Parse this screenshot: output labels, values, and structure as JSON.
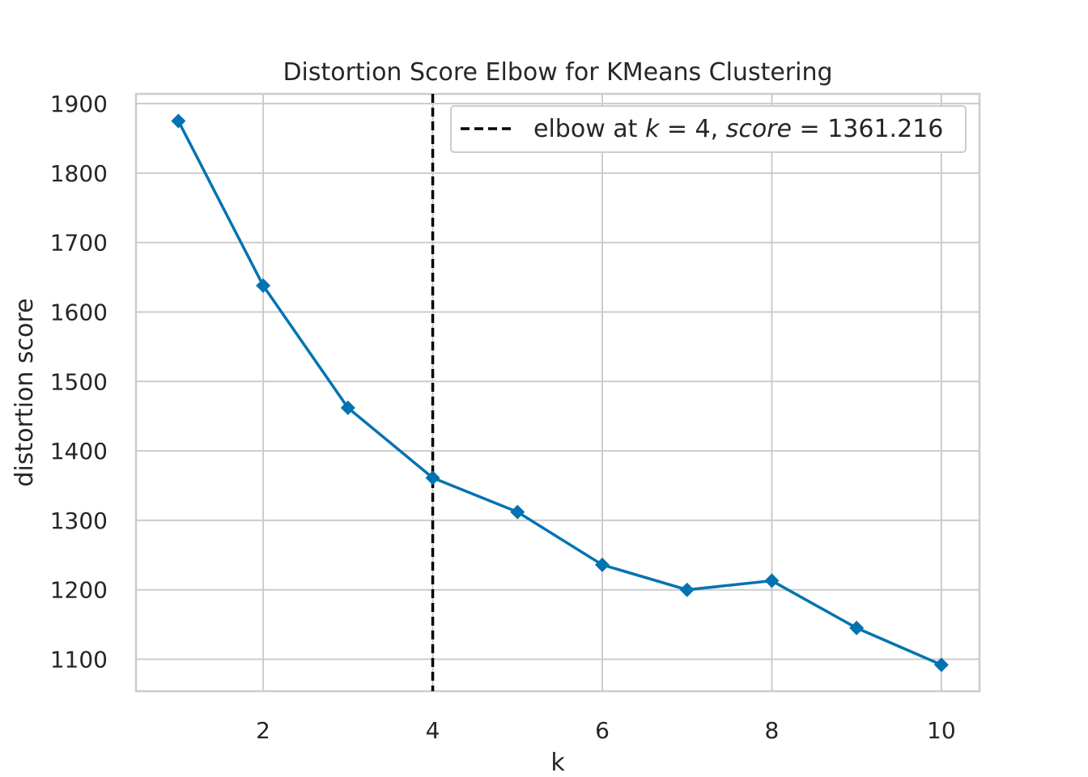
{
  "chart_data": {
    "type": "line",
    "title": "Distortion Score Elbow for KMeans Clustering",
    "xlabel": "k",
    "ylabel": "distortion score",
    "x": [
      1,
      2,
      3,
      4,
      5,
      6,
      7,
      8,
      9,
      10
    ],
    "series": [
      {
        "values": [
          1875,
          1638,
          1462,
          1361.216,
          1312,
          1236,
          1200,
          1213,
          1145,
          1092
        ],
        "color": "#0173b2",
        "marker": "diamond"
      }
    ],
    "xlim": [
      0.5,
      10.45
    ],
    "ylim": [
      1054,
      1914
    ],
    "xticks": [
      2,
      4,
      6,
      8,
      10
    ],
    "yticks": [
      1100,
      1200,
      1300,
      1400,
      1500,
      1600,
      1700,
      1800,
      1900
    ],
    "grid": true,
    "elbow": {
      "k": 4,
      "score": 1361.216,
      "color": "#000000",
      "linestyle": "dashed"
    },
    "legend": {
      "placement": "top-right",
      "text_prefix": "elbow at ",
      "k_symbol": "k",
      "k_part": " = 4, ",
      "score_symbol": "score",
      "score_part": " = 1361.216"
    }
  }
}
